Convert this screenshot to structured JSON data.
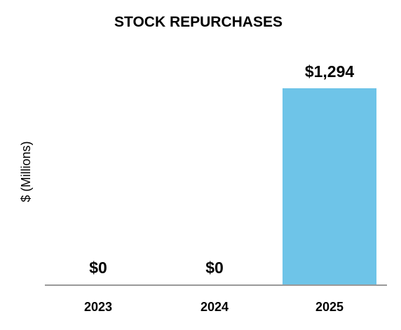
{
  "chart_data": {
    "type": "bar",
    "title": "STOCK REPURCHASES",
    "ylabel": "$ (Millions)",
    "xlabel": "",
    "categories": [
      "2023",
      "2024",
      "2025"
    ],
    "values": [
      0,
      0,
      1294
    ],
    "data_labels": [
      "$0",
      "$0",
      "$1,294"
    ],
    "ylim": [
      0,
      1294
    ],
    "grid": false,
    "legend": "none",
    "bar_color": "#6EC4E8",
    "axis_color": "#999999",
    "text_color": "#000000"
  }
}
